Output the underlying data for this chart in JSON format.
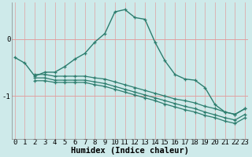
{
  "bg_color": "#ceeaea",
  "line_color": "#2d7d6e",
  "grid_color_v": "#e8b8b8",
  "grid_color_h": "#e8b8b8",
  "xlabel": "Humidex (Indice chaleur)",
  "xlabel_fontsize": 7.5,
  "tick_fontsize": 6.5,
  "ytick_labels": [
    "0",
    "-1"
  ],
  "ytick_vals": [
    0.0,
    -1.0
  ],
  "xlim": [
    -0.3,
    23.3
  ],
  "ylim": [
    -1.75,
    0.65
  ],
  "main_line_x": [
    0,
    1,
    2,
    3,
    4,
    5,
    6,
    7,
    8,
    9,
    10,
    11,
    12,
    13,
    14,
    15,
    16,
    17,
    18,
    19,
    20,
    21,
    22,
    23
  ],
  "main_line_y": [
    -0.32,
    -0.42,
    -0.65,
    -0.58,
    -0.58,
    -0.48,
    -0.35,
    -0.25,
    -0.05,
    0.1,
    0.48,
    0.52,
    0.38,
    0.35,
    -0.05,
    -0.38,
    -0.62,
    -0.7,
    -0.72,
    -0.85,
    -1.15,
    -1.28,
    -1.32,
    -1.22
  ],
  "line2_x": [
    2,
    3,
    4,
    5,
    6,
    7,
    8,
    9,
    10,
    11,
    12,
    13,
    14,
    15,
    16,
    17,
    18,
    19,
    20,
    21,
    22,
    23
  ],
  "line2_y": [
    -0.62,
    -0.62,
    -0.65,
    -0.65,
    -0.65,
    -0.65,
    -0.68,
    -0.7,
    -0.75,
    -0.8,
    -0.85,
    -0.9,
    -0.95,
    -1.0,
    -1.05,
    -1.08,
    -1.12,
    -1.18,
    -1.22,
    -1.28,
    -1.32,
    -1.22
  ],
  "line3_x": [
    2,
    3,
    4,
    5,
    6,
    7,
    8,
    9,
    10,
    11,
    12,
    13,
    14,
    15,
    16,
    17,
    18,
    19,
    20,
    21,
    22,
    23
  ],
  "line3_y": [
    -0.68,
    -0.68,
    -0.72,
    -0.72,
    -0.72,
    -0.72,
    -0.75,
    -0.78,
    -0.83,
    -0.88,
    -0.93,
    -0.98,
    -1.03,
    -1.08,
    -1.13,
    -1.18,
    -1.22,
    -1.28,
    -1.33,
    -1.38,
    -1.42,
    -1.32
  ],
  "line4_x": [
    2,
    3,
    4,
    5,
    6,
    7,
    8,
    9,
    10,
    11,
    12,
    13,
    14,
    15,
    16,
    17,
    18,
    19,
    20,
    21,
    22,
    23
  ],
  "line4_y": [
    -0.73,
    -0.73,
    -0.76,
    -0.76,
    -0.76,
    -0.76,
    -0.8,
    -0.83,
    -0.88,
    -0.93,
    -0.98,
    -1.03,
    -1.08,
    -1.14,
    -1.19,
    -1.24,
    -1.28,
    -1.34,
    -1.38,
    -1.44,
    -1.48,
    -1.38
  ]
}
